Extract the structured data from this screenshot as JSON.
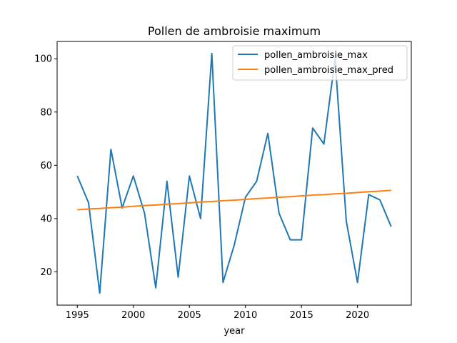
{
  "chart_data": {
    "type": "line",
    "title": "Pollen de ambroisie maximum",
    "xlabel": "year",
    "ylabel": "",
    "xlim": [
      1993.2,
      2024.8
    ],
    "ylim": [
      7.5,
      106.5
    ],
    "xticks": [
      1995,
      2000,
      2005,
      2010,
      2015,
      2020
    ],
    "yticks": [
      20,
      40,
      60,
      80,
      100
    ],
    "grid": false,
    "legend_position": "top-right",
    "x": [
      1995,
      1996,
      1997,
      1998,
      1999,
      2000,
      2001,
      2002,
      2003,
      2004,
      2005,
      2006,
      2007,
      2008,
      2009,
      2010,
      2011,
      2012,
      2013,
      2014,
      2015,
      2016,
      2017,
      2018,
      2019,
      2020,
      2021,
      2022,
      2023
    ],
    "series": [
      {
        "name": "pollen_ambroisie_max",
        "color": "#1f77b4",
        "values": [
          56,
          46,
          12,
          66,
          44,
          56,
          42,
          14,
          54,
          18,
          56,
          40,
          102,
          16,
          30,
          48,
          54,
          72,
          42,
          32,
          32,
          74,
          68,
          100,
          39,
          16,
          49,
          47,
          37
        ]
      },
      {
        "name": "pollen_ambroisie_max_pred",
        "color": "#ff7f0e",
        "values": [
          43.3,
          43.6,
          43.8,
          44.1,
          44.3,
          44.6,
          44.9,
          45.1,
          45.4,
          45.6,
          45.9,
          46.2,
          46.4,
          46.7,
          46.9,
          47.2,
          47.5,
          47.7,
          48.0,
          48.2,
          48.5,
          48.8,
          49.0,
          49.3,
          49.5,
          49.8,
          50.1,
          50.3,
          50.6
        ]
      }
    ]
  }
}
